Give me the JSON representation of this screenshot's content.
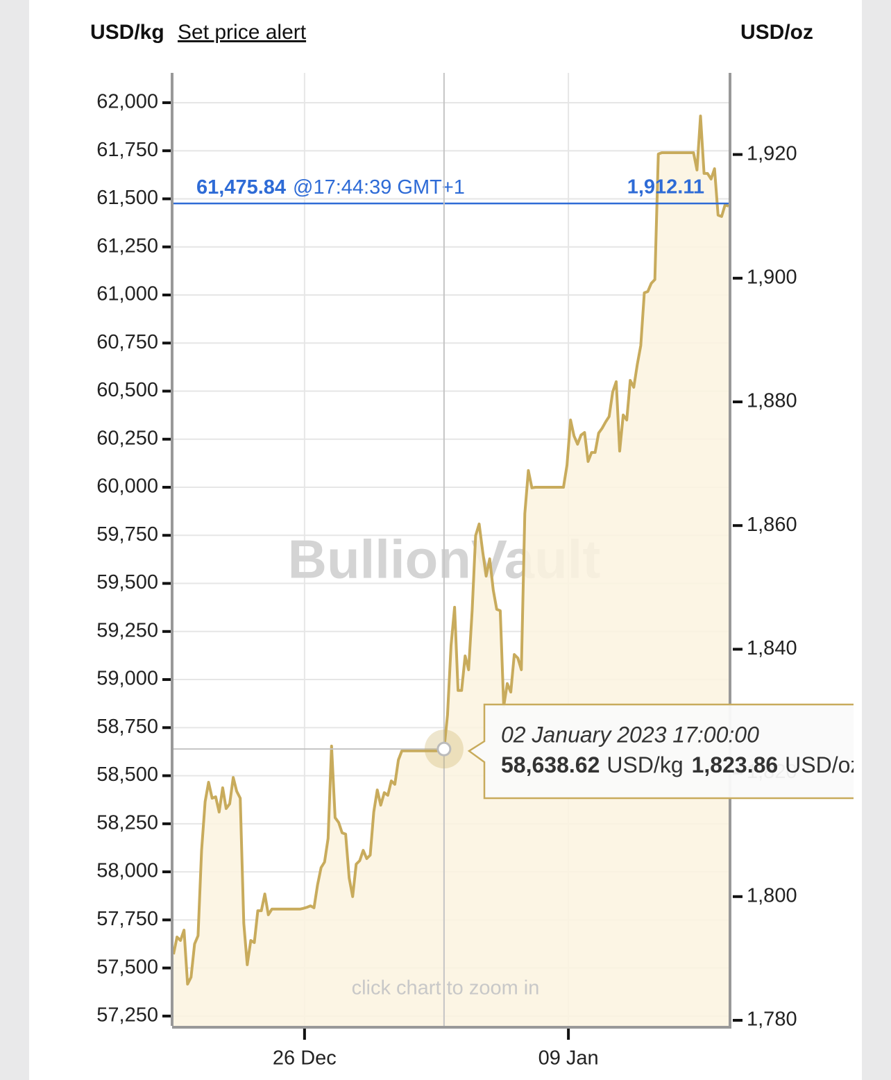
{
  "header": {
    "left_unit": "USD/kg",
    "alert_link": "Set price alert",
    "right_unit": "USD/oz"
  },
  "chart_data": {
    "type": "line",
    "watermark": "BullionVault",
    "hint": "click chart to zoom in",
    "color": "#c8ab5c",
    "fill": "#fbf3df",
    "values": [
      57571,
      57661,
      57643,
      57697,
      57416,
      57452,
      57625,
      57668,
      58112,
      58365,
      58466,
      58383,
      58390,
      58311,
      58437,
      58329,
      58354,
      58491,
      58419,
      58383,
      57733,
      57517,
      57643,
      57632,
      57798,
      57798,
      57885,
      57777,
      57806,
      57806,
      57806,
      57806,
      57806,
      57806,
      57806,
      57806,
      57806,
      57810,
      57816,
      57823,
      57813,
      57932,
      58022,
      58051,
      58174,
      58654,
      58282,
      58257,
      58203,
      58196,
      57968,
      57871,
      58040,
      58058,
      58112,
      58069,
      58087,
      58311,
      58426,
      58347,
      58412,
      58398,
      58473,
      58455,
      58582,
      58629,
      58629,
      58629,
      58629,
      58629,
      58629,
      58629,
      58629,
      58629,
      58629,
      58629,
      58636,
      58639,
      58816,
      59177,
      59376,
      58943,
      58943,
      59123,
      59051,
      59358,
      59748,
      59809,
      59665,
      59538,
      59628,
      59466,
      59365,
      59358,
      58860,
      58979,
      58935,
      59130,
      59112,
      59051,
      59863,
      60087,
      59997,
      60000,
      60000,
      60000,
      60000,
      60000,
      60000,
      60000,
      60000,
      60000,
      60116,
      60350,
      60267,
      60224,
      60271,
      60285,
      60134,
      60181,
      60181,
      60282,
      60307,
      60340,
      60368,
      60495,
      60549,
      60188,
      60376,
      60350,
      60556,
      60520,
      60639,
      60737,
      61011,
      61018,
      61061,
      61080,
      61733,
      61740,
      61740,
      61740,
      61740,
      61740,
      61740,
      61740,
      61740,
      61740,
      61740,
      61650,
      61931,
      61632,
      61632,
      61603,
      61657,
      61415,
      61408,
      61469,
      61462
    ],
    "xlim": [
      0,
      158
    ],
    "xticks": [
      {
        "value": 37.3,
        "label": "26 Dec"
      },
      {
        "value": 112.4,
        "label": "09 Jan"
      }
    ],
    "ylim": [
      57199,
      62155
    ],
    "yticks": [
      {
        "value": 57250,
        "label": "57,250"
      },
      {
        "value": 57500,
        "label": "57,500"
      },
      {
        "value": 57750,
        "label": "57,750"
      },
      {
        "value": 58000,
        "label": "58,000"
      },
      {
        "value": 58250,
        "label": "58,250"
      },
      {
        "value": 58500,
        "label": "58,500"
      },
      {
        "value": 58750,
        "label": "58,750"
      },
      {
        "value": 59000,
        "label": "59,000"
      },
      {
        "value": 59250,
        "label": "59,250"
      },
      {
        "value": 59500,
        "label": "59,500"
      },
      {
        "value": 59750,
        "label": "59,750"
      },
      {
        "value": 60000,
        "label": "60,000"
      },
      {
        "value": 60250,
        "label": "60,250"
      },
      {
        "value": 60500,
        "label": "60,500"
      },
      {
        "value": 60750,
        "label": "60,750"
      },
      {
        "value": 61000,
        "label": "61,000"
      },
      {
        "value": 61250,
        "label": "61,250"
      },
      {
        "value": 61500,
        "label": "61,500"
      },
      {
        "value": 61750,
        "label": "61,750"
      },
      {
        "value": 62000,
        "label": "62,000"
      }
    ],
    "y2lim": [
      1779.1,
      1933.2
    ],
    "y2ticks": [
      {
        "value": 1780,
        "label": "1,780"
      },
      {
        "value": 1800,
        "label": "1,800"
      },
      {
        "value": 1820,
        "label": "1,820"
      },
      {
        "value": 1840,
        "label": "1,840"
      },
      {
        "value": 1860,
        "label": "1,860"
      },
      {
        "value": 1880,
        "label": "1,880"
      },
      {
        "value": 1900,
        "label": "1,900"
      },
      {
        "value": 1920,
        "label": "1,920"
      }
    ],
    "grid": true,
    "current": {
      "value": 61475.84,
      "label": "61,475.84",
      "time": "@17:44:39 GMT+1",
      "value_oz": 1912.11,
      "label_oz": "1,912.11",
      "color": "#2e6bd6"
    },
    "tooltip": {
      "point_index": 77,
      "date": "02 January 2023 17:00:00",
      "values": [
        58638.62,
        1823.86
      ],
      "value_labels": [
        "58,638.62",
        "1,823.86"
      ],
      "units": [
        "USD/kg",
        "USD/oz"
      ]
    }
  }
}
